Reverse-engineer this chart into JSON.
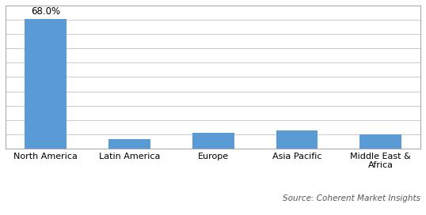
{
  "categories": [
    "North America",
    "Latin America",
    "Europe",
    "Asia Pacific",
    "Middle East &\nAfrica"
  ],
  "values": [
    68.0,
    5.0,
    8.5,
    9.5,
    7.5
  ],
  "bar_color": "#5B9BD5",
  "bar_label": "68.0%",
  "bar_label_index": 0,
  "ylim": [
    0,
    75
  ],
  "n_gridlines": 10,
  "source_text": "Source: Coherent Market Insights",
  "background_color": "#FFFFFF",
  "label_fontsize": 8.5,
  "tick_fontsize": 8,
  "source_fontsize": 7.5
}
